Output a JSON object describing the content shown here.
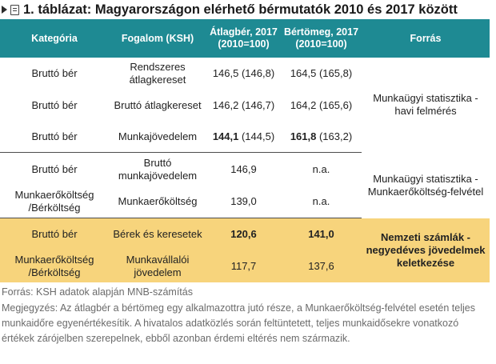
{
  "title": "1. táblázat: Magyarországon elérhető bérmutatók 2010 és 2017 között",
  "headers": {
    "kategoria": "Kategória",
    "fogalom": "Fogalom (KSH)",
    "atlagber": "Átlagbér, 2017 (2010=100)",
    "bertomeg": "Bértömeg, 2017 (2010=100)",
    "forras": "Forrás"
  },
  "rows": [
    {
      "kategoria": "Bruttó bér",
      "fogalom": "Rendszeres átlagkereset",
      "atlagber": "146,5 (146,8)",
      "bertomeg": "164,5 (165,8)"
    },
    {
      "kategoria": "Bruttó bér",
      "fogalom": "Bruttó átlagkereset",
      "atlagber": "146,2 (146,7)",
      "bertomeg": "164,2 (165,6)"
    },
    {
      "kategoria": "Bruttó bér",
      "fogalom": "Munkajövedelem",
      "atlagber_bold": "144,1",
      "atlagber_rest": " (144,5)",
      "bertomeg_bold": "161,8",
      "bertomeg_rest": " (163,2)"
    },
    {
      "kategoria": "Bruttó bér",
      "fogalom": "Bruttó munkajövedelem",
      "atlagber": "146,9",
      "bertomeg": "n.a."
    },
    {
      "kategoria": "Munkaerőköltség /Bérköltség",
      "fogalom": "Munkaerőköltség",
      "atlagber": "139,0",
      "bertomeg": "n.a."
    },
    {
      "kategoria": "Bruttó bér",
      "fogalom": "Bérek és keresetek",
      "atlagber": "120,6",
      "bertomeg": "141,0"
    },
    {
      "kategoria": "Munkaerőköltség /Bérköltség",
      "fogalom": "Munkavállalói jövedelem",
      "atlagber": "117,7",
      "bertomeg": "137,6"
    }
  ],
  "sources": {
    "group1": "Munkaügyi statisztika - havi felmérés",
    "group2": "Munkaügyi statisztika - Munkaerőköltség-felvétel",
    "group3": "Nemzeti számlák - negyedéves jövedelmek keletkezése"
  },
  "footnote_source": "Forrás: KSH adatok alapján MNB-számítás",
  "footnote_note": "Megjegyzés: Az átlagbér a bértömeg egy alkalmazottra jutó része, a Munkaerőköltség-felvétel esetén teljes munkaidőre egyenértékesítik. A hivatalos adatközlés során feltüntetett, teljes munkaidősekre vonatkozó értékek zárójelben szerepelnek, ebből azonban érdemi eltérés nem származik."
}
